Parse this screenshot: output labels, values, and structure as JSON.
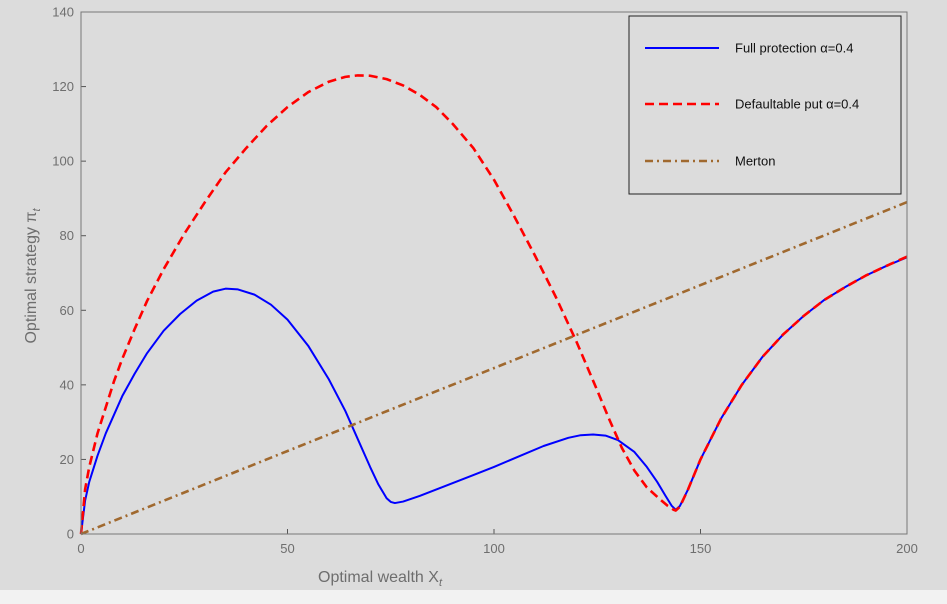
{
  "chart_data": {
    "type": "line",
    "xlabel": "Optimal wealth X",
    "xlabel_sub": "t",
    "ylabel": "Optimal strategy π",
    "ylabel_sub": "t",
    "xlim": [
      0,
      200
    ],
    "ylim": [
      0,
      140
    ],
    "x_ticks": [
      0,
      50,
      100,
      150,
      200
    ],
    "y_ticks": [
      0,
      20,
      40,
      60,
      80,
      100,
      120,
      140
    ],
    "grid": false,
    "legend_position": "top-right",
    "plot_background": "#dcdcdc",
    "page_background": "#f2f2f2",
    "series": [
      {
        "name": "Full protection α=0.4",
        "color": "#0000ff",
        "style": "solid",
        "points": [
          [
            0,
            0
          ],
          [
            1,
            9
          ],
          [
            2,
            14
          ],
          [
            4,
            21
          ],
          [
            6,
            27
          ],
          [
            8,
            32
          ],
          [
            10,
            37
          ],
          [
            13,
            43
          ],
          [
            16,
            48.5
          ],
          [
            20,
            54.5
          ],
          [
            24,
            59
          ],
          [
            28,
            62.6
          ],
          [
            32,
            65
          ],
          [
            35,
            65.8
          ],
          [
            38,
            65.6
          ],
          [
            42,
            64.2
          ],
          [
            46,
            61.5
          ],
          [
            50,
            57.5
          ],
          [
            55,
            50.5
          ],
          [
            60,
            41.5
          ],
          [
            64,
            33
          ],
          [
            67,
            25.5
          ],
          [
            70,
            18
          ],
          [
            72,
            13.3
          ],
          [
            74,
            9.6
          ],
          [
            75,
            8.6
          ],
          [
            76,
            8.3
          ],
          [
            78,
            8.7
          ],
          [
            82,
            10.2
          ],
          [
            88,
            12.8
          ],
          [
            95,
            15.8
          ],
          [
            100,
            18
          ],
          [
            106,
            20.8
          ],
          [
            112,
            23.6
          ],
          [
            118,
            25.8
          ],
          [
            121,
            26.5
          ],
          [
            124,
            26.7
          ],
          [
            127,
            26.4
          ],
          [
            130,
            25.2
          ],
          [
            134,
            22
          ],
          [
            137,
            18
          ],
          [
            139.5,
            14
          ],
          [
            141.5,
            10.3
          ],
          [
            143,
            7.6
          ],
          [
            144,
            6.5
          ],
          [
            145,
            7.5
          ],
          [
            147,
            12
          ],
          [
            150,
            20
          ],
          [
            155,
            31
          ],
          [
            160,
            40
          ],
          [
            165,
            47.5
          ],
          [
            170,
            53.5
          ],
          [
            175,
            58.5
          ],
          [
            180,
            62.8
          ],
          [
            185,
            66.2
          ],
          [
            190,
            69.3
          ],
          [
            195,
            71.9
          ],
          [
            200,
            74.2
          ]
        ]
      },
      {
        "name": "Defaultable put α=0.4",
        "color": "#ff0000",
        "style": "dashed",
        "points": [
          [
            0,
            0
          ],
          [
            1,
            12
          ],
          [
            2,
            18
          ],
          [
            4,
            27
          ],
          [
            6,
            34
          ],
          [
            8,
            41
          ],
          [
            10,
            47
          ],
          [
            13,
            55
          ],
          [
            16,
            62.5
          ],
          [
            20,
            71
          ],
          [
            25,
            80.5
          ],
          [
            30,
            89
          ],
          [
            35,
            97
          ],
          [
            40,
            103.5
          ],
          [
            45,
            109.5
          ],
          [
            50,
            114.5
          ],
          [
            55,
            118.5
          ],
          [
            60,
            121.3
          ],
          [
            64,
            122.6
          ],
          [
            67,
            123
          ],
          [
            70,
            122.9
          ],
          [
            74,
            122
          ],
          [
            78,
            120.3
          ],
          [
            82,
            117.8
          ],
          [
            86,
            114.5
          ],
          [
            90,
            110
          ],
          [
            95,
            103.5
          ],
          [
            100,
            95
          ],
          [
            105,
            85
          ],
          [
            110,
            74.5
          ],
          [
            115,
            63.5
          ],
          [
            120,
            51.5
          ],
          [
            125,
            38.5
          ],
          [
            128,
            30.5
          ],
          [
            131,
            23
          ],
          [
            134,
            17
          ],
          [
            137,
            12.5
          ],
          [
            140,
            9.5
          ],
          [
            142,
            7.6
          ],
          [
            143.5,
            6.5
          ],
          [
            144,
            6.3
          ],
          [
            145,
            7.3
          ],
          [
            147,
            12
          ],
          [
            150,
            20
          ],
          [
            155,
            31
          ],
          [
            160,
            40
          ],
          [
            165,
            47.5
          ],
          [
            170,
            53.5
          ],
          [
            175,
            58.5
          ],
          [
            180,
            62.8
          ],
          [
            185,
            66.2
          ],
          [
            190,
            69.3
          ],
          [
            195,
            71.9
          ],
          [
            200,
            74.4
          ]
        ]
      },
      {
        "name": "Merton",
        "color": "#a0692f",
        "style": "dash-dot",
        "points": [
          [
            0,
            0
          ],
          [
            200,
            89
          ]
        ]
      }
    ]
  }
}
